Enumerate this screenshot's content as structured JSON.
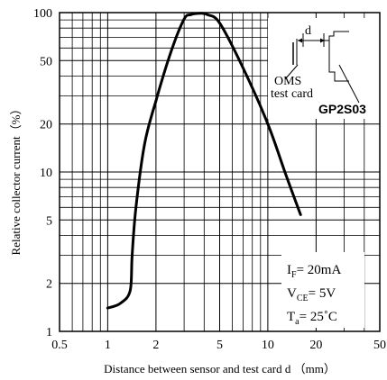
{
  "chart_data": {
    "type": "line",
    "xlabel": "Distance between sensor and test card d （mm）",
    "ylabel": "Relative collector current（%）",
    "x_scale": "log",
    "y_scale": "log",
    "xlim": [
      0.5,
      50
    ],
    "ylim": [
      1,
      100
    ],
    "x_ticks": [
      {
        "value": 0.5,
        "label": "0.5"
      },
      {
        "value": 1,
        "label": "1"
      },
      {
        "value": 2,
        "label": "2"
      },
      {
        "value": 5,
        "label": "5"
      },
      {
        "value": 10,
        "label": "10"
      },
      {
        "value": 20,
        "label": "20"
      },
      {
        "value": 50,
        "label": "50"
      }
    ],
    "y_ticks": [
      {
        "value": 1,
        "label": "1"
      },
      {
        "value": 2,
        "label": "2"
      },
      {
        "value": 5,
        "label": "5"
      },
      {
        "value": 10,
        "label": "10"
      },
      {
        "value": 20,
        "label": "20"
      },
      {
        "value": 50,
        "label": "50"
      },
      {
        "value": 100,
        "label": "100"
      }
    ],
    "grid": true,
    "series": [
      {
        "x": [
          1.0,
          1.2,
          1.38,
          1.42,
          1.5,
          1.7,
          2.0,
          2.5,
          3.0,
          3.3,
          3.8,
          4.2,
          5.0,
          7.0,
          10.0,
          13.0,
          16.0
        ],
        "y": [
          1.4,
          1.5,
          1.8,
          3.0,
          6.0,
          15.0,
          28.0,
          58.0,
          91.0,
          97.0,
          99.0,
          97.0,
          86.0,
          45.0,
          20.0,
          9.5,
          5.4
        ]
      }
    ],
    "inset_diagram": {
      "d_label": "d",
      "card_label_line1": "OMS",
      "card_label_line2": "test card",
      "part_number": "GP2S03"
    },
    "conditions": [
      {
        "sym": "I",
        "sub": "F",
        "rest": "= 20mA"
      },
      {
        "sym": "V",
        "sub": "CE",
        "rest": "= 5V"
      },
      {
        "sym": "T",
        "sub": "a",
        "rest": "= 25˚C"
      }
    ]
  }
}
